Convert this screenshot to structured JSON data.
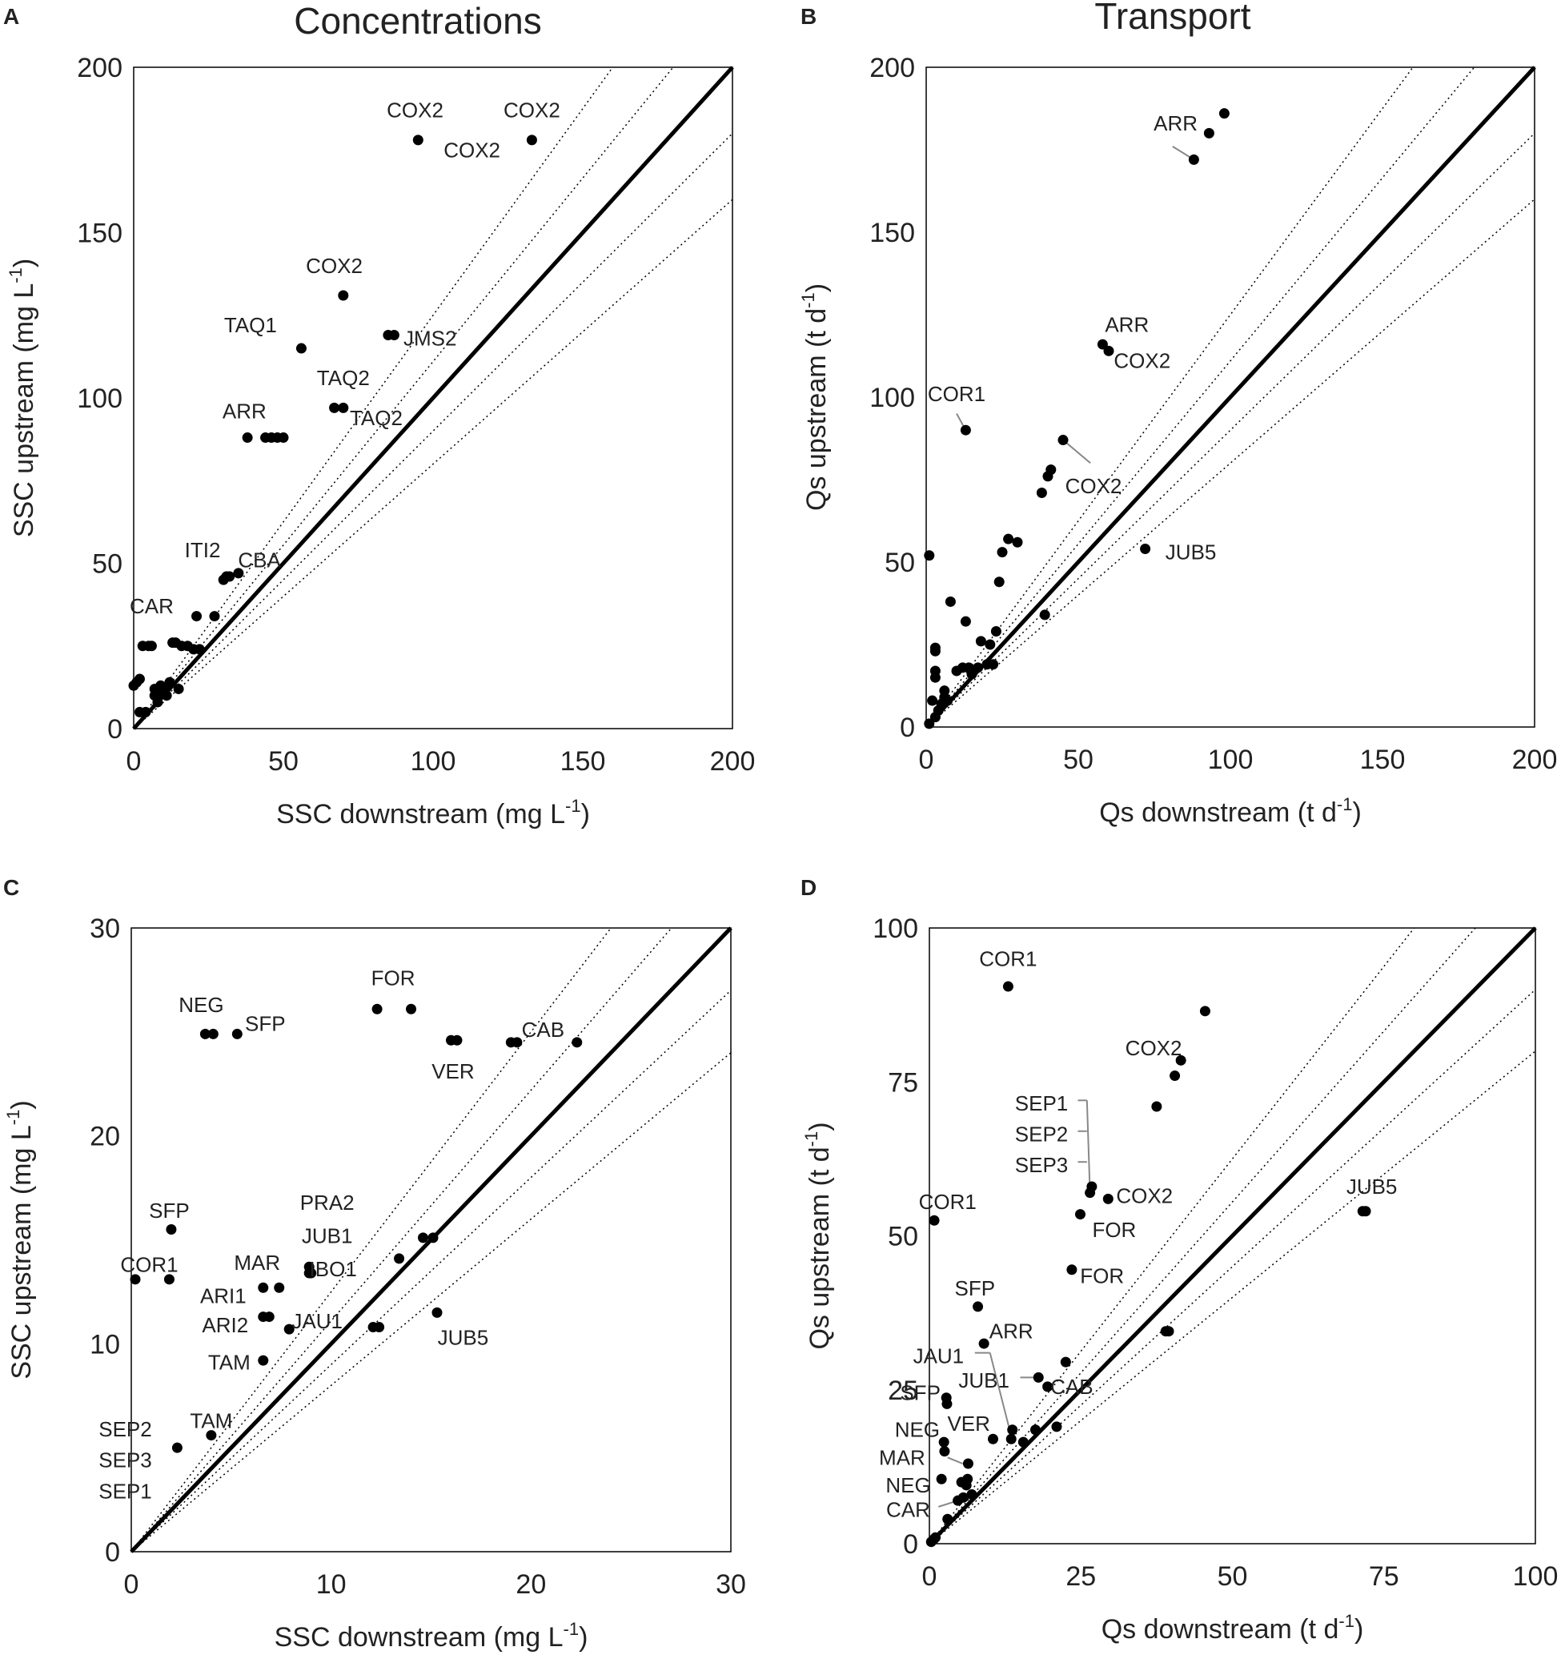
{
  "figure": {
    "column_titles": [
      "Concentrations",
      "Transport"
    ],
    "colors": {
      "points": "#000000",
      "frame": "#000000",
      "leader": "#888888",
      "text": "#222222"
    }
  },
  "chart_data": [
    {
      "panel": "A",
      "type": "scatter",
      "title": "Concentrations",
      "xlabel": "SSC downstream (mg L",
      "xlabel_sup": "-1",
      "xlabel_end": ")",
      "ylabel": "SSC upstream (mg L",
      "ylabel_sup": "-1",
      "ylabel_end": ")",
      "xlim": [
        0,
        200
      ],
      "ylim": [
        0,
        200
      ],
      "xticks": [
        0,
        50,
        100,
        150,
        200
      ],
      "yticks": [
        0,
        50,
        100,
        150,
        200
      ],
      "reference_lines": {
        "one_to_one": 1,
        "dotted_slopes": [
          1.25,
          1.11,
          0.9,
          0.8
        ]
      },
      "points": [
        [
          0,
          13
        ],
        [
          1,
          14
        ],
        [
          2,
          15
        ],
        [
          2,
          5
        ],
        [
          4,
          5
        ],
        [
          3,
          25
        ],
        [
          5,
          25
        ],
        [
          6,
          25
        ],
        [
          7,
          12
        ],
        [
          7,
          10
        ],
        [
          8,
          11
        ],
        [
          8,
          8
        ],
        [
          9,
          13
        ],
        [
          10,
          12
        ],
        [
          11,
          10
        ],
        [
          12,
          14
        ],
        [
          13,
          26
        ],
        [
          14,
          26
        ],
        [
          15,
          12
        ],
        [
          16,
          25
        ],
        [
          18,
          25
        ],
        [
          20,
          24
        ],
        [
          21,
          34
        ],
        [
          22,
          24
        ],
        [
          27,
          34
        ],
        [
          30,
          45
        ],
        [
          31,
          46
        ],
        [
          32,
          46
        ],
        [
          35,
          47
        ],
        [
          38,
          88
        ],
        [
          44,
          88
        ],
        [
          46,
          88
        ],
        [
          48,
          88
        ],
        [
          50,
          88
        ],
        [
          56,
          115
        ],
        [
          67,
          97
        ],
        [
          70,
          97
        ],
        [
          70,
          131
        ],
        [
          85,
          119
        ],
        [
          87,
          119
        ],
        [
          95,
          178
        ],
        [
          133,
          178
        ]
      ],
      "labels": [
        {
          "text": "COX2",
          "x": 94,
          "y": 187
        },
        {
          "text": "COX2",
          "x": 133,
          "y": 187
        },
        {
          "text": "COX2",
          "x": 113,
          "y": 175
        },
        {
          "text": "COX2",
          "x": 67,
          "y": 140
        },
        {
          "text": "TAQ1",
          "x": 39,
          "y": 122
        },
        {
          "text": "JMS2",
          "x": 99,
          "y": 118
        },
        {
          "text": "TAQ2",
          "x": 70,
          "y": 106
        },
        {
          "text": "TAQ2",
          "x": 81,
          "y": 94
        },
        {
          "text": "ARR",
          "x": 37,
          "y": 96
        },
        {
          "text": "ITI2",
          "x": 23,
          "y": 54
        },
        {
          "text": "CBA",
          "x": 42,
          "y": 51
        },
        {
          "text": "CAR",
          "x": 6,
          "y": 37
        }
      ]
    },
    {
      "panel": "B",
      "type": "scatter",
      "title": "Transport",
      "xlabel": "Qs downstream (t d",
      "xlabel_sup": "-1",
      "xlabel_end": ")",
      "ylabel": "Qs upstream (t d",
      "ylabel_sup": "-1",
      "ylabel_end": ")",
      "xlim": [
        0,
        200
      ],
      "ylim": [
        0,
        200
      ],
      "xticks": [
        0,
        50,
        100,
        150,
        200
      ],
      "yticks": [
        0,
        50,
        100,
        150,
        200
      ],
      "reference_lines": {
        "one_to_one": 1,
        "dotted_slopes": [
          1.25,
          1.11,
          0.9,
          0.8
        ]
      },
      "points": [
        [
          1,
          1
        ],
        [
          1,
          52
        ],
        [
          2,
          8
        ],
        [
          3,
          3
        ],
        [
          3,
          15
        ],
        [
          3,
          17
        ],
        [
          3,
          23
        ],
        [
          3,
          24
        ],
        [
          4,
          5
        ],
        [
          5,
          7
        ],
        [
          6,
          9
        ],
        [
          6,
          11
        ],
        [
          7,
          8
        ],
        [
          8,
          38
        ],
        [
          10,
          17
        ],
        [
          12,
          18
        ],
        [
          13,
          90
        ],
        [
          13,
          32
        ],
        [
          14,
          18
        ],
        [
          15,
          16
        ],
        [
          17,
          18
        ],
        [
          18,
          26
        ],
        [
          20,
          19
        ],
        [
          21,
          25
        ],
        [
          22,
          19
        ],
        [
          23,
          29
        ],
        [
          24,
          44
        ],
        [
          25,
          53
        ],
        [
          27,
          57
        ],
        [
          30,
          56
        ],
        [
          38,
          71
        ],
        [
          39,
          34
        ],
        [
          40,
          76
        ],
        [
          41,
          78
        ],
        [
          45,
          87
        ],
        [
          58,
          116
        ],
        [
          60,
          114
        ],
        [
          72,
          54
        ],
        [
          88,
          172
        ],
        [
          93,
          180
        ],
        [
          98,
          186
        ]
      ],
      "labels": [
        {
          "text": "ARR",
          "x": 82,
          "y": 183
        },
        {
          "text": "ARR",
          "x": 66,
          "y": 122
        },
        {
          "text": "COX2",
          "x": 71,
          "y": 111
        },
        {
          "text": "COR1",
          "x": 10,
          "y": 101
        },
        {
          "text": "COX2",
          "x": 55,
          "y": 73
        },
        {
          "text": "JUB5",
          "x": 87,
          "y": 53
        }
      ],
      "leaders": [
        {
          "from": [
            81,
            176
          ],
          "to": [
            88,
            172
          ]
        },
        {
          "from": [
            10,
            95
          ],
          "to": [
            13,
            90
          ]
        },
        {
          "from": [
            54,
            80
          ],
          "to": [
            45,
            87
          ]
        }
      ]
    },
    {
      "panel": "C",
      "type": "scatter",
      "xlabel": "SSC downstream (mg L",
      "xlabel_sup": "-1",
      "xlabel_end": ")",
      "ylabel": "SSC upstream (mg L",
      "ylabel_sup": "-1",
      "ylabel_end": ")",
      "xlim": [
        0,
        30
      ],
      "ylim": [
        0,
        30
      ],
      "xticks": [
        0,
        10,
        20,
        30
      ],
      "yticks": [
        0,
        10,
        20,
        30
      ],
      "reference_lines": {
        "one_to_one": 1,
        "dotted_slopes": [
          1.25,
          1.11,
          0.9,
          0.8
        ]
      },
      "points": [
        [
          0.2,
          13.1
        ],
        [
          1.9,
          13.1
        ],
        [
          2.0,
          15.5
        ],
        [
          2.3,
          5.0
        ],
        [
          3.7,
          24.9
        ],
        [
          4.1,
          24.9
        ],
        [
          4.0,
          5.6
        ],
        [
          5.3,
          24.9
        ],
        [
          6.6,
          12.7
        ],
        [
          6.6,
          11.3
        ],
        [
          6.6,
          9.2
        ],
        [
          6.9,
          11.3
        ],
        [
          7.4,
          12.7
        ],
        [
          7.9,
          10.7
        ],
        [
          8.9,
          13.4
        ],
        [
          8.9,
          13.7
        ],
        [
          9.0,
          13.4
        ],
        [
          12.1,
          10.8
        ],
        [
          12.3,
          26.1
        ],
        [
          12.4,
          10.8
        ],
        [
          13.4,
          14.1
        ],
        [
          14.0,
          26.1
        ],
        [
          14.6,
          15.1
        ],
        [
          15.1,
          15.1
        ],
        [
          15.3,
          11.5
        ],
        [
          16.0,
          24.6
        ],
        [
          16.3,
          24.6
        ],
        [
          19.0,
          24.5
        ],
        [
          19.3,
          24.5
        ],
        [
          22.3,
          24.5
        ]
      ],
      "labels": [
        {
          "text": "FOR",
          "x": 13.1,
          "y": 27.6
        },
        {
          "text": "NEG",
          "x": 3.5,
          "y": 26.3
        },
        {
          "text": "SFP",
          "x": 6.7,
          "y": 25.4
        },
        {
          "text": "CAB",
          "x": 20.6,
          "y": 25.1
        },
        {
          "text": "VER",
          "x": 16.1,
          "y": 23.1
        },
        {
          "text": "SFP",
          "x": 1.9,
          "y": 16.4
        },
        {
          "text": "PRA2",
          "x": 9.8,
          "y": 16.8
        },
        {
          "text": "JUB1",
          "x": 9.8,
          "y": 15.2
        },
        {
          "text": "MAR",
          "x": 6.3,
          "y": 13.9
        },
        {
          "text": "IBO1",
          "x": 10.1,
          "y": 13.6
        },
        {
          "text": "COR1",
          "x": 0.9,
          "y": 13.8
        },
        {
          "text": "ARI1",
          "x": 4.6,
          "y": 12.3
        },
        {
          "text": "ARI2",
          "x": 4.7,
          "y": 10.9
        },
        {
          "text": "JAU1",
          "x": 9.3,
          "y": 11.1
        },
        {
          "text": "JUB5",
          "x": 16.6,
          "y": 10.3
        },
        {
          "text": "TAM",
          "x": 4.9,
          "y": 9.1
        },
        {
          "text": "TAM",
          "x": 4.0,
          "y": 6.3
        },
        {
          "text": "SEP2",
          "x": -0.3,
          "y": 5.9
        },
        {
          "text": "SEP3",
          "x": -0.3,
          "y": 4.4
        },
        {
          "text": "SEP1",
          "x": -0.3,
          "y": 2.9
        }
      ]
    },
    {
      "panel": "D",
      "type": "scatter",
      "xlabel": "Qs downstream (t d",
      "xlabel_sup": "-1",
      "xlabel_end": ")",
      "ylabel": "Qs upstream (t d",
      "ylabel_sup": "-1",
      "ylabel_end": ")",
      "xlim": [
        0,
        100
      ],
      "ylim": [
        0,
        100
      ],
      "xticks": [
        0,
        25,
        50,
        75,
        100
      ],
      "yticks": [
        0,
        25,
        50,
        75,
        100
      ],
      "reference_lines": {
        "one_to_one": 1,
        "dotted_slopes": [
          1.25,
          1.11,
          0.9,
          0.8
        ]
      },
      "points": [
        [
          0.3,
          0.3
        ],
        [
          0.7,
          0.7
        ],
        [
          1.0,
          1.0
        ],
        [
          0.8,
          52.5
        ],
        [
          2.0,
          10.5
        ],
        [
          2.4,
          16.5
        ],
        [
          2.5,
          15.0
        ],
        [
          2.8,
          23.7
        ],
        [
          2.9,
          22.7
        ],
        [
          3.0,
          4.0
        ],
        [
          4.7,
          7.0
        ],
        [
          5.3,
          10.0
        ],
        [
          5.6,
          7.5
        ],
        [
          6.1,
          9.5
        ],
        [
          6.3,
          10.5
        ],
        [
          6.4,
          13.0
        ],
        [
          7.0,
          8.0
        ],
        [
          8.0,
          38.5
        ],
        [
          9.0,
          32.5
        ],
        [
          10.5,
          17.0
        ],
        [
          13.0,
          90.5
        ],
        [
          13.5,
          17.0
        ],
        [
          13.7,
          18.5
        ],
        [
          15.5,
          16.5
        ],
        [
          17.5,
          18.5
        ],
        [
          18.0,
          27.0
        ],
        [
          19.5,
          25.5
        ],
        [
          21.0,
          19.0
        ],
        [
          22.5,
          29.5
        ],
        [
          23.5,
          44.5
        ],
        [
          24.9,
          53.5
        ],
        [
          26.5,
          57.0
        ],
        [
          26.8,
          58.0
        ],
        [
          29.5,
          56.0
        ],
        [
          37.5,
          71.0
        ],
        [
          39.0,
          34.5
        ],
        [
          39.5,
          34.5
        ],
        [
          40.5,
          76.0
        ],
        [
          41.5,
          78.5
        ],
        [
          45.5,
          86.5
        ],
        [
          71.5,
          54.0
        ],
        [
          72.0,
          54.0
        ]
      ],
      "labels": [
        {
          "text": "COR1",
          "x": 13.0,
          "y": 95.0
        },
        {
          "text": "COX2",
          "x": 37.0,
          "y": 80.5
        },
        {
          "text": "SEP1",
          "x": 18.5,
          "y": 71.5
        },
        {
          "text": "SEP2",
          "x": 18.5,
          "y": 66.5
        },
        {
          "text": "SEP3",
          "x": 18.5,
          "y": 61.5
        },
        {
          "text": "COX2",
          "x": 35.5,
          "y": 56.5
        },
        {
          "text": "COR1",
          "x": 3.0,
          "y": 55.5
        },
        {
          "text": "FOR",
          "x": 30.5,
          "y": 51.0
        },
        {
          "text": "FOR",
          "x": 28.5,
          "y": 43.5
        },
        {
          "text": "SFP",
          "x": 7.5,
          "y": 41.5
        },
        {
          "text": "ARR",
          "x": 13.5,
          "y": 34.5
        },
        {
          "text": "JAU1",
          "x": 1.5,
          "y": 30.5
        },
        {
          "text": "JUB1",
          "x": 9.0,
          "y": 26.5
        },
        {
          "text": "CAB",
          "x": 23.5,
          "y": 25.5
        },
        {
          "text": "SFP",
          "x": -1.5,
          "y": 24.5
        },
        {
          "text": "JUB5",
          "x": 73.0,
          "y": 58.0
        },
        {
          "text": "VER",
          "x": 6.5,
          "y": 19.5
        },
        {
          "text": "NEG",
          "x": -2.0,
          "y": 18.5
        },
        {
          "text": "MAR",
          "x": -4.5,
          "y": 14.0
        },
        {
          "text": "NEG",
          "x": -3.5,
          "y": 9.5
        },
        {
          "text": "CAR",
          "x": -3.5,
          "y": 5.5
        }
      ],
      "leaders": [
        {
          "from": [
            24.5,
            72.0
          ],
          "to": [
            26.0,
            72.0
          ]
        },
        {
          "from": [
            26.0,
            72.0
          ],
          "to": [
            26.5,
            57.0
          ]
        },
        {
          "from": [
            24.5,
            67.0
          ],
          "to": [
            26.0,
            67.0
          ]
        },
        {
          "from": [
            24.5,
            62.0
          ],
          "to": [
            26.0,
            62.0
          ]
        },
        {
          "from": [
            7.5,
            31.0
          ],
          "to": [
            10.0,
            31.0
          ]
        },
        {
          "from": [
            10.0,
            31.0
          ],
          "to": [
            13.5,
            17.5
          ]
        },
        {
          "from": [
            15.0,
            27.0
          ],
          "to": [
            17.5,
            27.0
          ]
        },
        {
          "from": [
            3.0,
            14.0
          ],
          "to": [
            5.5,
            13.0
          ]
        },
        {
          "from": [
            1.5,
            10.0
          ],
          "to": [
            2.0,
            10.5
          ]
        },
        {
          "from": [
            1.5,
            6.0
          ],
          "to": [
            4.7,
            7.0
          ]
        }
      ]
    }
  ]
}
